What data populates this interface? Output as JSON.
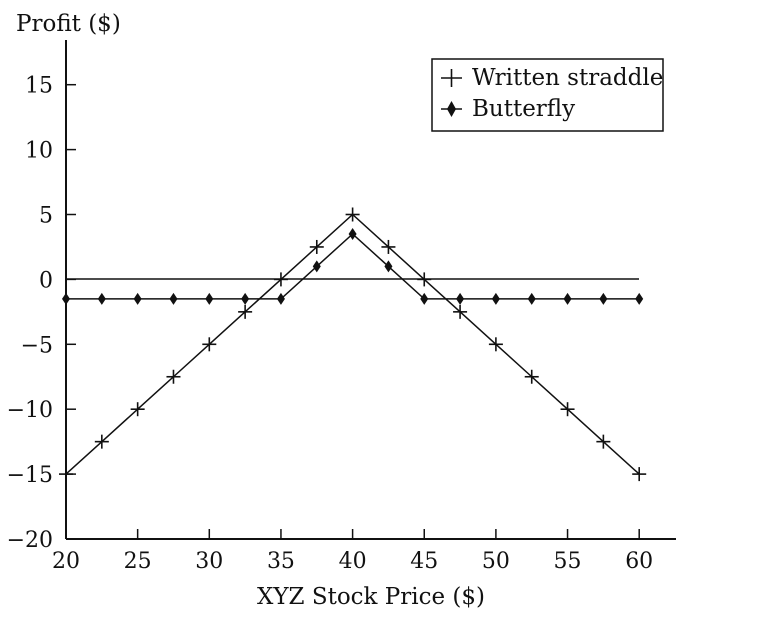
{
  "chart_data": {
    "type": "line",
    "ylabel": "Profit ($)",
    "xlabel": "XYZ Stock Price ($)",
    "xlim": [
      20,
      62
    ],
    "ylim": [
      -20,
      18
    ],
    "xticks": [
      20,
      25,
      30,
      35,
      40,
      45,
      50,
      55,
      60
    ],
    "yticks": [
      15,
      10,
      5,
      0,
      -5,
      -10,
      -15,
      -20
    ],
    "ytick_labels": [
      "15",
      "10",
      "5",
      "0",
      "−5",
      "−10",
      "−15",
      "−20"
    ],
    "zero_line": true,
    "grid": false,
    "legend": {
      "position": "top-right",
      "frame": true
    },
    "series": [
      {
        "name": "Written straddle",
        "marker": "plus",
        "x": [
          20,
          22.5,
          25,
          27.5,
          30,
          32.5,
          35,
          37.5,
          40,
          42.5,
          45,
          47.5,
          50,
          52.5,
          55,
          57.5,
          60
        ],
        "y": [
          -15,
          -12.5,
          -10,
          -7.5,
          -5,
          -2.5,
          0,
          2.5,
          5,
          2.5,
          0,
          -2.5,
          -5,
          -7.5,
          -10,
          -12.5,
          -15
        ]
      },
      {
        "name": "Butterfly",
        "marker": "diamond",
        "x": [
          20,
          22.5,
          25,
          27.5,
          30,
          32.5,
          35,
          37.5,
          40,
          42.5,
          45,
          47.5,
          50,
          52.5,
          55,
          57.5,
          60
        ],
        "y": [
          -1.5,
          -1.5,
          -1.5,
          -1.5,
          -1.5,
          -1.5,
          -1.5,
          1,
          3.5,
          1,
          -1.5,
          -1.5,
          -1.5,
          -1.5,
          -1.5,
          -1.5,
          -1.5
        ]
      }
    ]
  }
}
